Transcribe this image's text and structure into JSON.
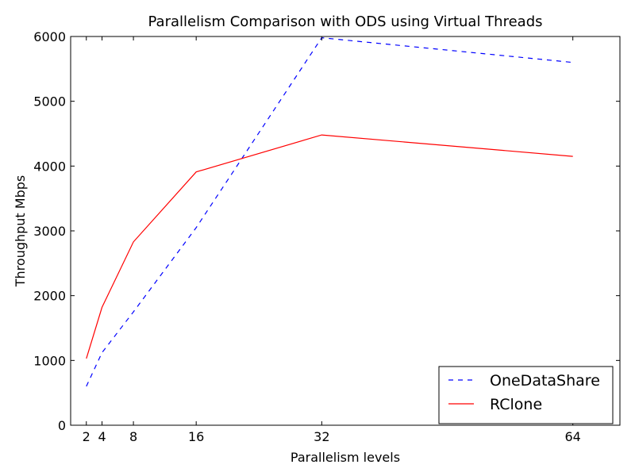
{
  "chart_data": {
    "type": "line",
    "title": "Parallelism Comparison with ODS using Virtual Threads",
    "xlabel": "Parallelism levels",
    "ylabel": "Throughput Mbps",
    "xlim": [
      0,
      70
    ],
    "ylim": [
      0,
      6000
    ],
    "x_ticks": [
      2,
      4,
      8,
      16,
      32,
      64
    ],
    "y_ticks": [
      0,
      1000,
      2000,
      3000,
      4000,
      5000,
      6000
    ],
    "x": [
      2,
      4,
      8,
      16,
      32,
      64
    ],
    "series": [
      {
        "name": "OneDataShare",
        "values": [
          600,
          1120,
          1750,
          3050,
          5980,
          5600
        ],
        "color": "#0000ff",
        "style": "dashed"
      },
      {
        "name": "RClone",
        "values": [
          1030,
          1820,
          2830,
          3910,
          4480,
          4150
        ],
        "color": "#ff0000",
        "style": "solid"
      }
    ],
    "legend_position": "lower-right",
    "grid": false
  }
}
